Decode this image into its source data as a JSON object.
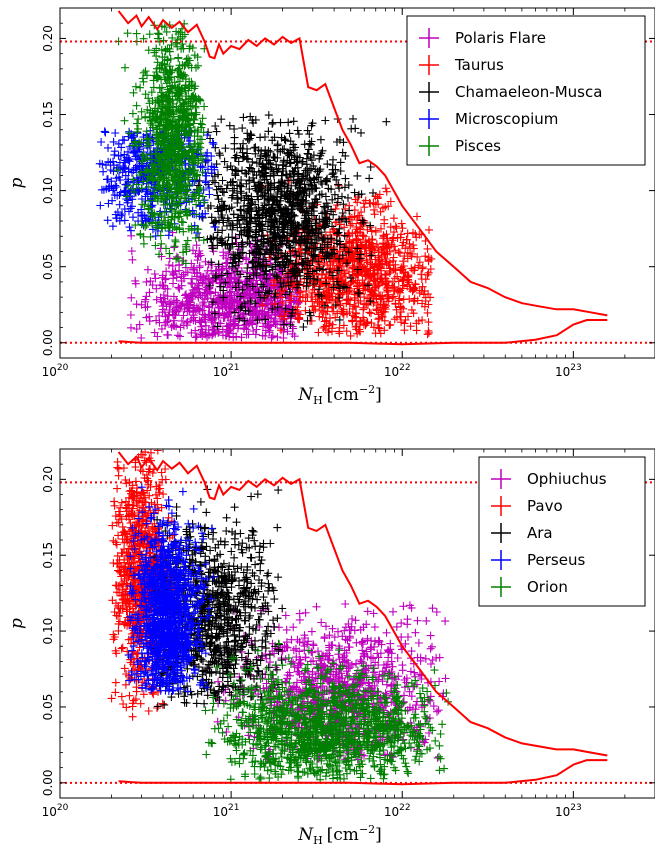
{
  "chart_data": [
    {
      "type": "scatter",
      "xscale": "log",
      "xlim": [
        1e+20,
        3e+23
      ],
      "ylim": [
        -0.01,
        0.22
      ],
      "xlabel": "N",
      "xlabel_sub": "H",
      "xlabel_unit": "[cm",
      "xlabel_exp": "−2",
      "xlabel_close": "]",
      "ylabel": "p",
      "x_ticks": [
        {
          "base": "10",
          "exp": "20",
          "value": 1e+20
        },
        {
          "base": "10",
          "exp": "21",
          "value": 1e+21
        },
        {
          "base": "10",
          "exp": "22",
          "value": 1e+22
        },
        {
          "base": "10",
          "exp": "23",
          "value": 1e+23
        }
      ],
      "y_ticks": [
        {
          "label": "0.00",
          "value": 0.0
        },
        {
          "label": "0.05",
          "value": 0.05
        },
        {
          "label": "0.10",
          "value": 0.1
        },
        {
          "label": "0.15",
          "value": 0.15
        },
        {
          "label": "0.20",
          "value": 0.2
        }
      ],
      "legend_position": "top-right",
      "hlines": [
        0.198,
        0.0
      ],
      "upper_envelope": {
        "x": [
          2.2e+20,
          2.5e+20,
          2.8e+20,
          3e+20,
          3.3e+20,
          3.7e+20,
          4e+20,
          4.5e+20,
          5e+20,
          5.6e+20,
          6.3e+20,
          7e+20,
          7.5e+20,
          8e+20,
          8.5e+20,
          9e+20,
          1e+21,
          1.12e+21,
          1.26e+21,
          1.41e+21,
          1.58e+21,
          1.78e+21,
          2e+21,
          2.24e+21,
          2.51e+21,
          2.82e+21,
          3.16e+21,
          3.55e+21,
          3.98e+21,
          4.47e+21,
          5.01e+21,
          5.62e+21,
          6.31e+21,
          7.08e+21,
          7.94e+21,
          8.91e+21,
          1e+22,
          1.26e+22,
          1.58e+22,
          2e+22,
          2.51e+22,
          3.16e+22,
          3.98e+22,
          5.01e+22,
          6.31e+22,
          7.94e+22,
          1e+23,
          1.26e+23,
          1.58e+23
        ],
        "y": [
          0.218,
          0.21,
          0.215,
          0.208,
          0.214,
          0.206,
          0.212,
          0.207,
          0.211,
          0.204,
          0.209,
          0.198,
          0.188,
          0.187,
          0.196,
          0.19,
          0.195,
          0.193,
          0.199,
          0.195,
          0.2,
          0.196,
          0.201,
          0.197,
          0.2,
          0.168,
          0.166,
          0.17,
          0.155,
          0.14,
          0.13,
          0.118,
          0.12,
          0.116,
          0.11,
          0.1,
          0.09,
          0.075,
          0.06,
          0.05,
          0.04,
          0.036,
          0.03,
          0.026,
          0.024,
          0.022,
          0.022,
          0.02,
          0.018
        ]
      },
      "lower_envelope": {
        "x": [
          2.2e+20,
          3e+20,
          5e+20,
          1e+21,
          2e+21,
          5e+21,
          1e+22,
          2e+22,
          4e+22,
          6e+22,
          8e+22,
          1e+23,
          1.2e+23,
          1.58e+23
        ],
        "y": [
          0.001,
          0.0,
          0.0,
          0.0,
          0.0,
          0.0,
          -0.001,
          0.0,
          0.0,
          0.002,
          0.005,
          0.012,
          0.015,
          0.015
        ]
      },
      "series": [
        {
          "name": "Polaris Flare",
          "color": "#bf00bf",
          "cluster": {
            "xc": 1.1e+21,
            "yc": 0.028,
            "sx": 0.3,
            "sy": 0.016,
            "n": 900,
            "xlo": 2.5e+20,
            "xhi": 2.5e+21,
            "ylo": 0.003,
            "yhi": 0.075
          }
        },
        {
          "name": "Taurus",
          "color": "#ff0000",
          "cluster": {
            "xc": 5.5e+21,
            "yc": 0.045,
            "sx": 0.25,
            "sy": 0.022,
            "n": 1000,
            "xlo": 1.5e+21,
            "xhi": 1.5e+22,
            "ylo": 0.004,
            "yhi": 0.115
          }
        },
        {
          "name": "Chamaeleon-Musca",
          "color": "#000000",
          "cluster": {
            "xc": 1.9e+21,
            "yc": 0.085,
            "sx": 0.22,
            "sy": 0.03,
            "n": 1200,
            "xlo": 6e+20,
            "xhi": 9e+21,
            "ylo": 0.01,
            "yhi": 0.15
          }
        },
        {
          "name": "Microscopium",
          "color": "#0000ff",
          "cluster": {
            "xc": 3.5e+20,
            "yc": 0.115,
            "sx": 0.16,
            "sy": 0.02,
            "n": 500,
            "xlo": 1.7e+20,
            "xhi": 8e+20,
            "ylo": 0.07,
            "yhi": 0.14
          }
        },
        {
          "name": "Pisces",
          "color": "#008000",
          "cluster": {
            "xc": 4.5e+20,
            "yc": 0.135,
            "sx": 0.1,
            "sy": 0.035,
            "n": 900,
            "xlo": 1.9e+20,
            "xhi": 7e+20,
            "ylo": 0.05,
            "yhi": 0.21
          }
        }
      ]
    },
    {
      "type": "scatter",
      "xscale": "log",
      "xlim": [
        1e+20,
        3e+23
      ],
      "ylim": [
        -0.01,
        0.22
      ],
      "xlabel": "N",
      "xlabel_sub": "H",
      "xlabel_unit": "[cm",
      "xlabel_exp": "−2",
      "xlabel_close": "]",
      "ylabel": "p",
      "x_ticks": [
        {
          "base": "10",
          "exp": "20",
          "value": 1e+20
        },
        {
          "base": "10",
          "exp": "21",
          "value": 1e+21
        },
        {
          "base": "10",
          "exp": "22",
          "value": 1e+22
        },
        {
          "base": "10",
          "exp": "23",
          "value": 1e+23
        }
      ],
      "y_ticks": [
        {
          "label": "0.00",
          "value": 0.0
        },
        {
          "label": "0.05",
          "value": 0.05
        },
        {
          "label": "0.10",
          "value": 0.1
        },
        {
          "label": "0.15",
          "value": 0.15
        },
        {
          "label": "0.20",
          "value": 0.2
        }
      ],
      "legend_position": "top-right",
      "hlines": [
        0.198,
        0.0
      ],
      "upper_envelope": {
        "x": [
          2.2e+20,
          2.5e+20,
          2.8e+20,
          3e+20,
          3.3e+20,
          3.7e+20,
          4e+20,
          4.5e+20,
          5e+20,
          5.6e+20,
          6.3e+20,
          7e+20,
          7.5e+20,
          8e+20,
          8.5e+20,
          9e+20,
          1e+21,
          1.12e+21,
          1.26e+21,
          1.41e+21,
          1.58e+21,
          1.78e+21,
          2e+21,
          2.24e+21,
          2.51e+21,
          2.82e+21,
          3.16e+21,
          3.55e+21,
          3.98e+21,
          4.47e+21,
          5.01e+21,
          5.62e+21,
          6.31e+21,
          7.08e+21,
          7.94e+21,
          8.91e+21,
          1e+22,
          1.26e+22,
          1.58e+22,
          2e+22,
          2.51e+22,
          3.16e+22,
          3.98e+22,
          5.01e+22,
          6.31e+22,
          7.94e+22,
          1e+23,
          1.26e+23,
          1.58e+23
        ],
        "y": [
          0.218,
          0.21,
          0.215,
          0.208,
          0.214,
          0.206,
          0.212,
          0.207,
          0.211,
          0.204,
          0.209,
          0.198,
          0.188,
          0.187,
          0.196,
          0.19,
          0.195,
          0.193,
          0.199,
          0.195,
          0.2,
          0.196,
          0.201,
          0.197,
          0.2,
          0.168,
          0.166,
          0.17,
          0.155,
          0.14,
          0.13,
          0.118,
          0.12,
          0.116,
          0.11,
          0.1,
          0.09,
          0.075,
          0.06,
          0.05,
          0.04,
          0.036,
          0.03,
          0.026,
          0.024,
          0.022,
          0.022,
          0.02,
          0.018
        ]
      },
      "lower_envelope": {
        "x": [
          2.2e+20,
          3e+20,
          5e+20,
          1e+21,
          2e+21,
          5e+21,
          1e+22,
          2e+22,
          4e+22,
          6e+22,
          8e+22,
          1e+23,
          1.2e+23,
          1.58e+23
        ],
        "y": [
          0.001,
          0.0,
          0.0,
          0.0,
          0.0,
          0.0,
          -0.001,
          0.0,
          0.0,
          0.002,
          0.005,
          0.012,
          0.015,
          0.015
        ]
      },
      "series": [
        {
          "name": "Ophiuchus",
          "color": "#bf00bf",
          "cluster": {
            "xc": 4.5e+21,
            "yc": 0.06,
            "sx": 0.28,
            "sy": 0.025,
            "n": 900,
            "xlo": 8e+20,
            "xhi": 1.8e+22,
            "ylo": 0.015,
            "yhi": 0.118
          }
        },
        {
          "name": "Pavo",
          "color": "#ff0000",
          "cluster": {
            "xc": 3e+20,
            "yc": 0.14,
            "sx": 0.08,
            "sy": 0.04,
            "n": 800,
            "xlo": 2e+20,
            "xhi": 5e+20,
            "ylo": 0.04,
            "yhi": 0.22
          }
        },
        {
          "name": "Ara",
          "color": "#000000",
          "cluster": {
            "xc": 7.5e+20,
            "yc": 0.11,
            "sx": 0.22,
            "sy": 0.03,
            "n": 900,
            "xlo": 3.5e+20,
            "xhi": 2e+21,
            "ylo": 0.05,
            "yhi": 0.21
          }
        },
        {
          "name": "Perseus",
          "color": "#0000ff",
          "cluster": {
            "xc": 4.2e+20,
            "yc": 0.11,
            "sx": 0.1,
            "sy": 0.03,
            "n": 1100,
            "xlo": 2.5e+20,
            "xhi": 8e+20,
            "ylo": 0.06,
            "yhi": 0.21
          }
        },
        {
          "name": "Orion",
          "color": "#008000",
          "cluster": {
            "xc": 3.5e+21,
            "yc": 0.035,
            "sx": 0.32,
            "sy": 0.018,
            "n": 1300,
            "xlo": 7e+20,
            "xhi": 1.9e+22,
            "ylo": 0.002,
            "yhi": 0.095
          }
        }
      ]
    }
  ]
}
